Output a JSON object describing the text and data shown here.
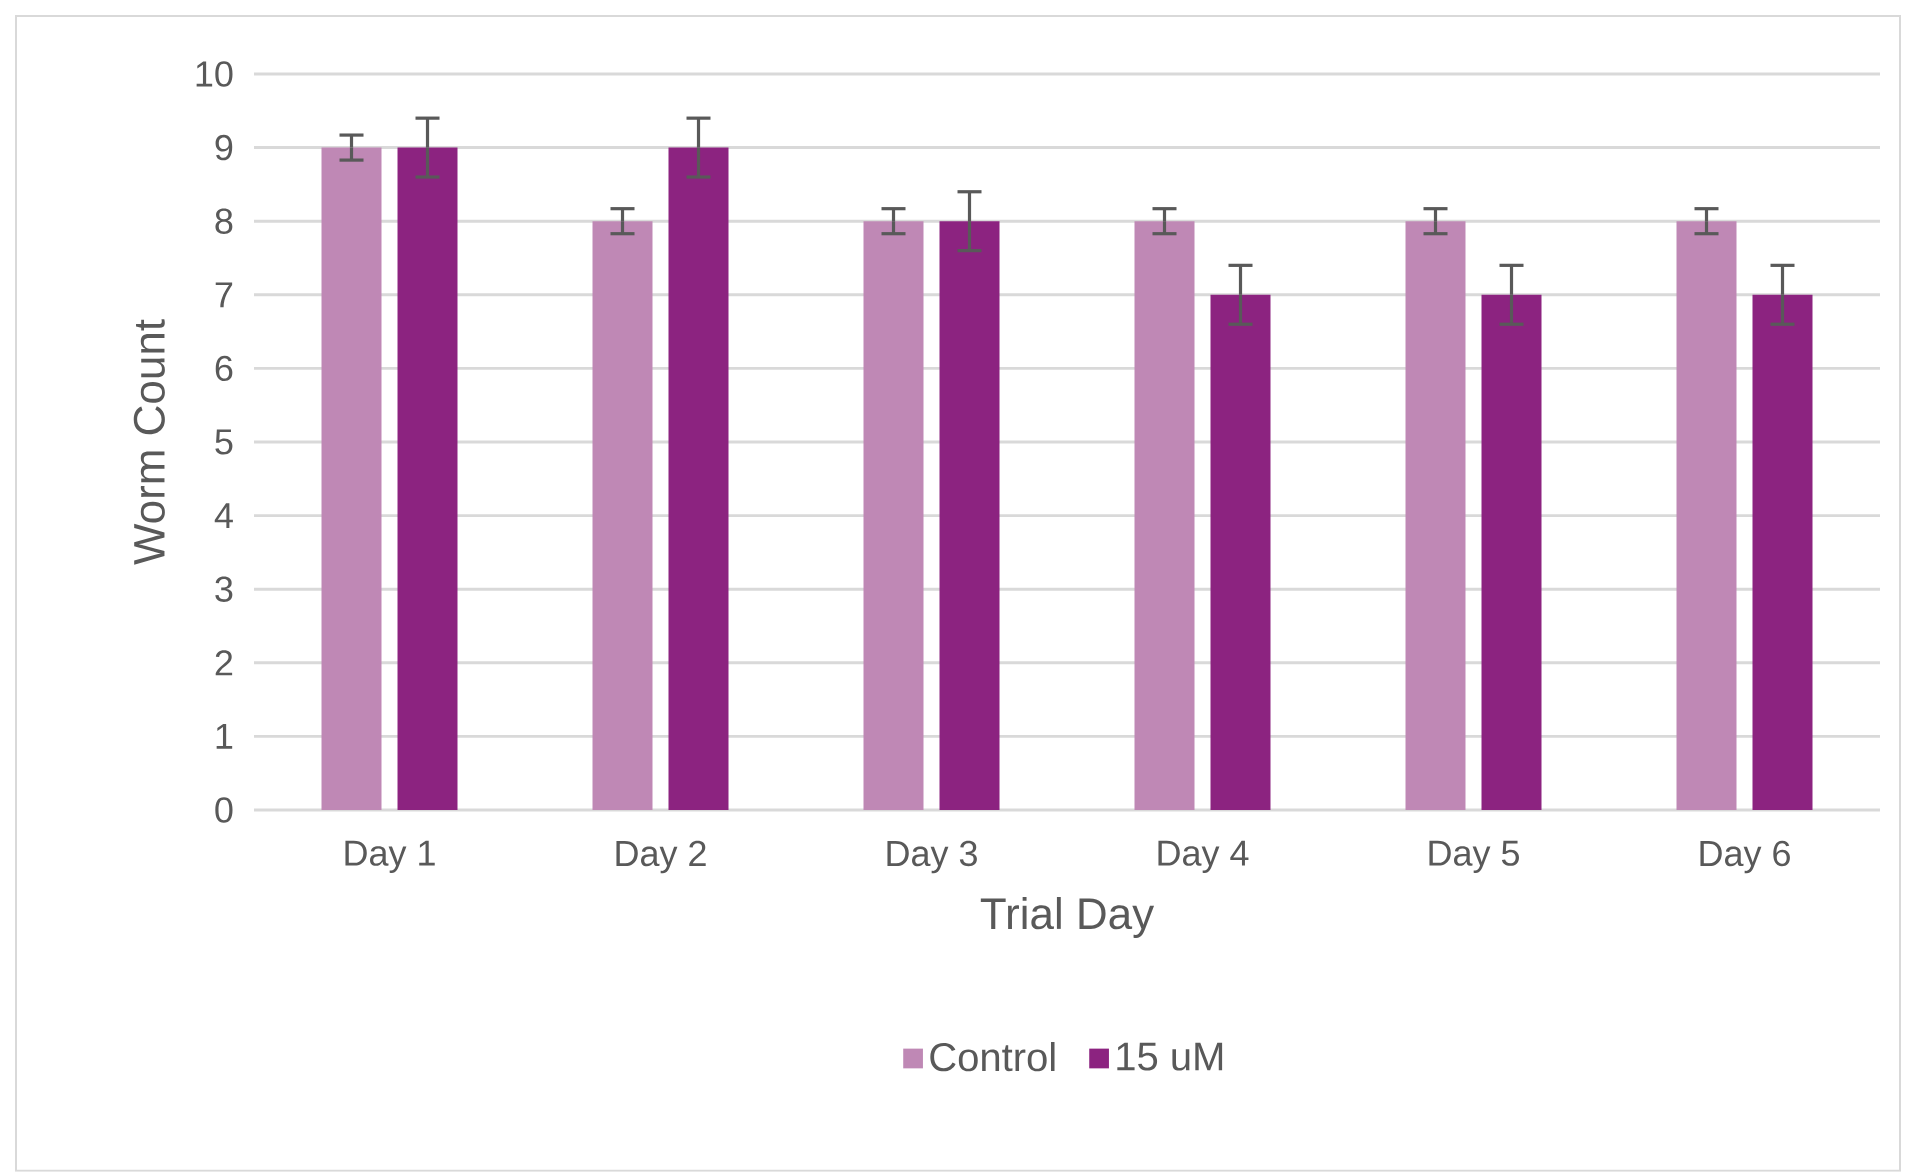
{
  "chart_data": {
    "type": "bar",
    "xlabel": "Trial Day",
    "ylabel": "Worm Count",
    "categories": [
      "Day 1",
      "Day 2",
      "Day 3",
      "Day 4",
      "Day 5",
      "Day 6"
    ],
    "series": [
      {
        "name": "Control",
        "color": "#bf88b5",
        "values": [
          9,
          8,
          8,
          8,
          8,
          8
        ],
        "errors": [
          0.17,
          0.17,
          0.17,
          0.17,
          0.17,
          0.17
        ]
      },
      {
        "name": "15 uM",
        "color": "#8c2380",
        "values": [
          9,
          9,
          8,
          7,
          7,
          7
        ],
        "errors": [
          0.4,
          0.4,
          0.4,
          0.4,
          0.4,
          0.4
        ]
      }
    ],
    "ylim": [
      0,
      10
    ],
    "yticks": [
      0,
      1,
      2,
      3,
      4,
      5,
      6,
      7,
      8,
      9,
      10
    ],
    "grid": "y",
    "legend": "bottom"
  }
}
